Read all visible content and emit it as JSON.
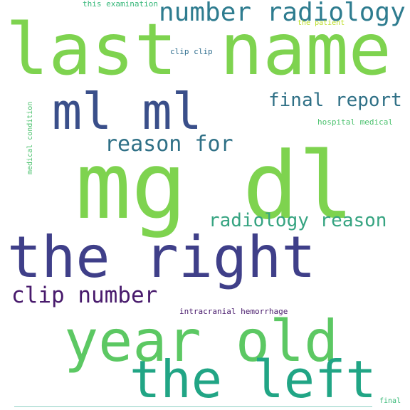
{
  "wordcloud": {
    "words": {
      "last_name": {
        "text": "last name",
        "color": "#7ed34f"
      },
      "number_radiology": {
        "text": "number radiology",
        "color": "#2e7c8f"
      },
      "ml_ml": {
        "text": "ml ml",
        "color": "#3a4f8a"
      },
      "final_report": {
        "text": "final report",
        "color": "#2f7086"
      },
      "reason_for": {
        "text": "reason for",
        "color": "#2f7086"
      },
      "mg_dl": {
        "text": "mg dl",
        "color": "#7ed34f"
      },
      "radiology_reason": {
        "text": "radiology reason",
        "color": "#36a481"
      },
      "the_right": {
        "text": "the right",
        "color": "#3f3f89"
      },
      "clip_number": {
        "text": "clip number",
        "color": "#481a6c"
      },
      "year_old": {
        "text": "year old",
        "color": "#5cc863"
      },
      "the_left": {
        "text": "the left",
        "color": "#21a585"
      },
      "this_examination": {
        "text": "this examination",
        "color": "#35b779"
      },
      "the_patient": {
        "text": "the patient",
        "color": "#bddf26"
      },
      "clip_clip": {
        "text": "clip clip",
        "color": "#2f6e8e"
      },
      "hospital_medical": {
        "text": "hospital medical",
        "color": "#4ac16d"
      },
      "intracranial_hemorrhage": {
        "text": "intracranial hemorrhage",
        "color": "#481a6c"
      },
      "final": {
        "text": "final",
        "color": "#38b977"
      },
      "medical_condition": {
        "text": "medical condition",
        "color": "#4ac16d"
      }
    },
    "baseline_color": "#8ed0c5"
  }
}
